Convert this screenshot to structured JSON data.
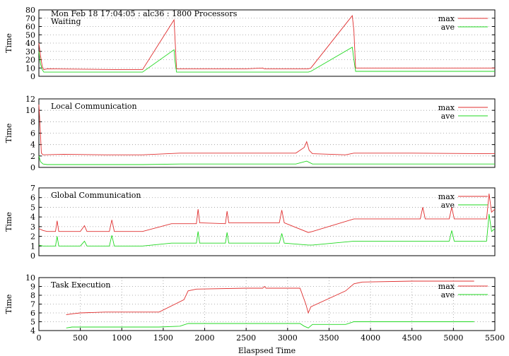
{
  "header": "Mon Feb 18 17:04:05 : alc36 : 1800 Processors",
  "xlabel": "Elaspsed Time",
  "colors": {
    "max": "#e03030",
    "ave": "#20d820"
  },
  "chart_data": [
    {
      "type": "line",
      "title": "Waiting",
      "ylabel": "Time",
      "xlim": [
        0,
        5500
      ],
      "ylim": [
        0,
        80
      ],
      "yticks": [
        0,
        10,
        20,
        30,
        40,
        50,
        60,
        70,
        80
      ],
      "legend": "top-right",
      "series": [
        {
          "name": "max",
          "x": [
            0,
            20,
            40,
            60,
            100,
            1000,
            1250,
            1630,
            1640,
            1660,
            2000,
            2500,
            2700,
            2720,
            2800,
            3250,
            3280,
            3780,
            3800,
            3820,
            4000,
            5500
          ],
          "y": [
            40,
            25,
            12,
            8,
            9,
            8,
            8,
            68,
            50,
            9,
            9,
            9,
            10,
            9,
            9,
            9,
            10,
            73,
            55,
            10,
            10,
            10
          ]
        },
        {
          "name": "ave",
          "x": [
            0,
            20,
            40,
            60,
            100,
            1000,
            1250,
            1630,
            1640,
            1660,
            2000,
            2500,
            3250,
            3280,
            3780,
            3800,
            3820,
            4000,
            5500
          ],
          "y": [
            30,
            15,
            8,
            5,
            5,
            5,
            5,
            32,
            20,
            5,
            5,
            5,
            5,
            6,
            35,
            20,
            6,
            6,
            6
          ]
        }
      ]
    },
    {
      "type": "line",
      "title": "Local Communication",
      "ylabel": "Time",
      "xlim": [
        0,
        5500
      ],
      "ylim": [
        0,
        12
      ],
      "yticks": [
        0,
        2,
        4,
        6,
        8,
        10,
        12
      ],
      "legend": "top-right",
      "series": [
        {
          "name": "max",
          "x": [
            0,
            15,
            30,
            50,
            300,
            800,
            1250,
            1700,
            2500,
            3100,
            3200,
            3230,
            3260,
            3300,
            3700,
            3800,
            4500,
            5500
          ],
          "y": [
            11,
            7,
            2.5,
            2.2,
            2.3,
            2.2,
            2.2,
            2.5,
            2.5,
            2.5,
            3.5,
            4.5,
            3,
            2.4,
            2.2,
            2.5,
            2.5,
            2.4
          ]
        },
        {
          "name": "ave",
          "x": [
            0,
            20,
            50,
            100,
            800,
            1250,
            1700,
            3100,
            3230,
            3300,
            3800,
            5500
          ],
          "y": [
            2,
            1,
            0.6,
            0.5,
            0.5,
            0.5,
            0.6,
            0.6,
            1.1,
            0.6,
            0.6,
            0.6
          ]
        }
      ]
    },
    {
      "type": "line",
      "title": "Global Communication",
      "ylabel": "Time",
      "xlim": [
        0,
        5500
      ],
      "ylim": [
        0,
        7
      ],
      "yticks": [
        0,
        1,
        2,
        3,
        4,
        5,
        6,
        7
      ],
      "legend": "top-right",
      "series": [
        {
          "name": "max",
          "x": [
            0,
            50,
            100,
            200,
            220,
            240,
            500,
            550,
            580,
            850,
            880,
            910,
            1250,
            1600,
            1900,
            1920,
            1940,
            2250,
            2270,
            2290,
            2900,
            2930,
            2960,
            3250,
            3300,
            3800,
            4000,
            4600,
            4630,
            4660,
            4950,
            4980,
            5010,
            5400,
            5430,
            5460,
            5500
          ],
          "y": [
            2.8,
            2.6,
            2.5,
            2.5,
            3.6,
            2.5,
            2.5,
            3.1,
            2.5,
            2.5,
            3.7,
            2.5,
            2.5,
            3.3,
            3.3,
            4.8,
            3.4,
            3.3,
            4.6,
            3.4,
            3.4,
            4.7,
            3.4,
            2.4,
            2.5,
            3.8,
            3.8,
            3.8,
            5.0,
            3.8,
            3.8,
            5.0,
            3.8,
            3.8,
            6.4,
            4.5,
            4.8
          ]
        },
        {
          "name": "ave",
          "x": [
            0,
            50,
            100,
            200,
            220,
            240,
            500,
            550,
            580,
            850,
            880,
            910,
            1250,
            1600,
            1900,
            1920,
            1940,
            2250,
            2270,
            2290,
            2900,
            2930,
            2960,
            3250,
            3300,
            3800,
            4000,
            4950,
            4980,
            5010,
            5400,
            5430,
            5460,
            5500
          ],
          "y": [
            1.1,
            1.0,
            1.0,
            1.0,
            2.0,
            1.0,
            1.0,
            1.5,
            1.0,
            1.0,
            2.1,
            1.0,
            1.0,
            1.3,
            1.3,
            2.5,
            1.3,
            1.3,
            2.4,
            1.3,
            1.3,
            2.3,
            1.3,
            1.1,
            1.1,
            1.5,
            1.5,
            1.5,
            2.6,
            1.5,
            1.5,
            4.3,
            2.5,
            2.8
          ]
        }
      ]
    },
    {
      "type": "line",
      "title": "Task Execution",
      "ylabel": "Time",
      "xlim": [
        0,
        5500
      ],
      "ylim": [
        4,
        10
      ],
      "yticks": [
        4,
        5,
        6,
        7,
        8,
        9,
        10
      ],
      "xticks": [
        0,
        500,
        1000,
        1500,
        2000,
        2500,
        3000,
        3500,
        4000,
        4500,
        5000,
        5500
      ],
      "legend": "top-right",
      "series": [
        {
          "name": "max",
          "x": [
            330,
            400,
            500,
            800,
            1000,
            1250,
            1450,
            1750,
            1800,
            1900,
            2500,
            2700,
            2720,
            2740,
            3150,
            3220,
            3250,
            3280,
            3700,
            3800,
            3900,
            4500,
            5000,
            5250
          ],
          "y": [
            5.8,
            5.9,
            6.0,
            6.1,
            6.1,
            6.1,
            6.1,
            7.5,
            8.5,
            8.7,
            8.8,
            8.8,
            9.0,
            8.8,
            8.8,
            7.0,
            6.0,
            6.7,
            8.5,
            9.3,
            9.5,
            9.6,
            9.6,
            9.6
          ]
        },
        {
          "name": "ave",
          "x": [
            330,
            400,
            500,
            1000,
            1250,
            1450,
            1700,
            1800,
            1900,
            2500,
            3150,
            3200,
            3250,
            3300,
            3700,
            3800,
            4500,
            5000,
            5250
          ],
          "y": [
            4.3,
            4.4,
            4.4,
            4.4,
            4.4,
            4.4,
            4.5,
            4.8,
            4.8,
            4.8,
            4.8,
            4.5,
            4.3,
            4.7,
            4.7,
            5.0,
            5.0,
            5.0,
            5.0
          ]
        }
      ]
    }
  ]
}
